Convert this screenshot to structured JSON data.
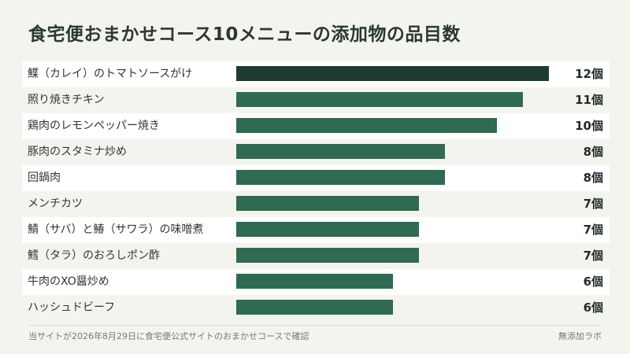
{
  "chart_data": {
    "type": "bar",
    "orientation": "horizontal",
    "title": "食宅便おまかせコース10メニューの添加物の品目数",
    "categories": [
      "鰈（カレイ）のトマトソースがけ",
      "照り焼きチキン",
      "鶏肉のレモンペッパー焼き",
      "豚肉のスタミナ炒め",
      "回鍋肉",
      "メンチカツ",
      "鯖（サバ）と鰆（サワラ）の味噌煮",
      "鱈（タラ）のおろしポン酢",
      "牛肉のXO醤炒め",
      "ハッシュドビーフ"
    ],
    "values": [
      12,
      11,
      10,
      8,
      8,
      7,
      7,
      7,
      6,
      6
    ],
    "value_labels": [
      "12個",
      "11個",
      "10個",
      "8個",
      "8個",
      "7個",
      "7個",
      "7個",
      "6個",
      "6個"
    ],
    "xlim": [
      0,
      12
    ],
    "grid": false,
    "colors": {
      "bar": "#2e6b52",
      "bar_highlight": "#1d3d31"
    }
  },
  "footer": {
    "source": "当サイトが2026年8月29日に食宅便公式サイトのおまかせコースで確認",
    "credit": "無添加ラボ"
  }
}
